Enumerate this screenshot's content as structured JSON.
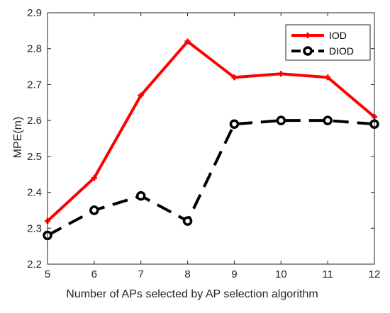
{
  "chart_data": {
    "type": "line",
    "title": "",
    "xlabel": "Number of APs selected by AP selection algorithm",
    "ylabel": "MPE(m)",
    "x": [
      5,
      6,
      7,
      8,
      9,
      10,
      11,
      12
    ],
    "xlim": [
      5,
      12
    ],
    "ylim": [
      2.2,
      2.9
    ],
    "x_ticks": [
      "5",
      "6",
      "7",
      "8",
      "9",
      "10",
      "11",
      "12"
    ],
    "y_ticks": [
      "2.2",
      "2.3",
      "2.4",
      "2.5",
      "2.6",
      "2.7",
      "2.8",
      "2.9"
    ],
    "grid": false,
    "legend_position": "top-right",
    "series": [
      {
        "name": "IOD",
        "values": [
          2.32,
          2.44,
          2.67,
          2.82,
          2.72,
          2.73,
          2.72,
          2.61
        ],
        "color": "#ff0000",
        "line_style": "solid",
        "marker": "plus"
      },
      {
        "name": "DIOD",
        "values": [
          2.28,
          2.35,
          2.39,
          2.32,
          2.59,
          2.6,
          2.6,
          2.59
        ],
        "color": "#000000",
        "line_style": "dashed",
        "marker": "circle"
      }
    ]
  }
}
